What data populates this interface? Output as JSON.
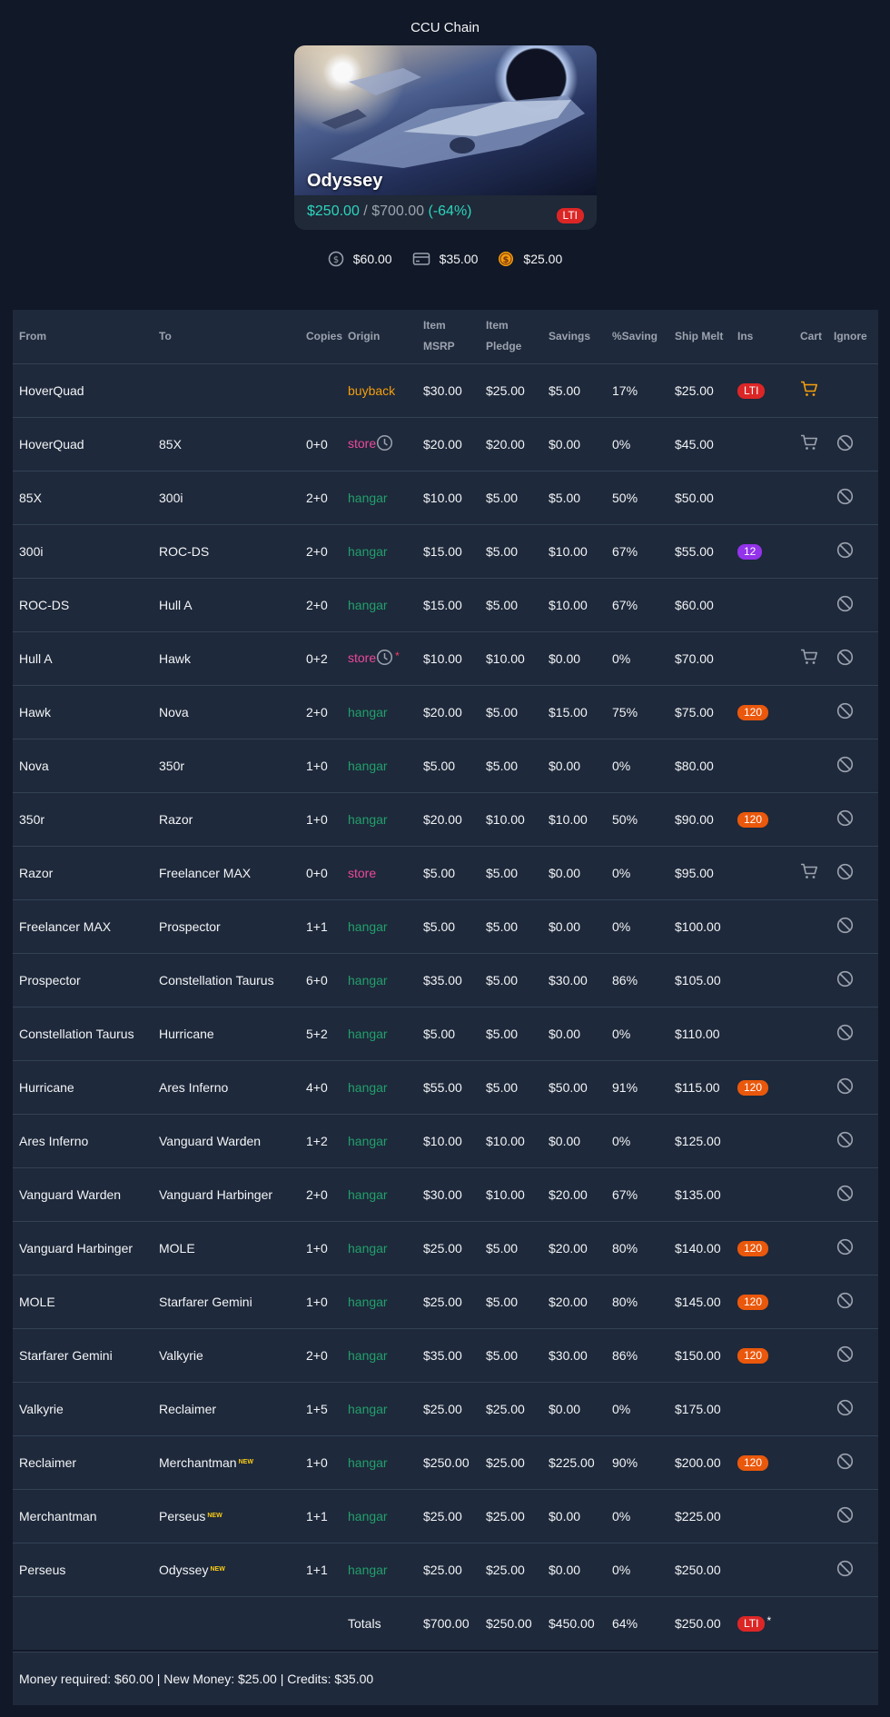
{
  "page_title": "CCU Chain",
  "target": {
    "name": "Odyssey",
    "price": "$250.00",
    "separator": " / ",
    "msrp": "$700.00",
    "discount": "(-64%)",
    "badge": "LTI"
  },
  "funds": [
    {
      "icon": "dollar-circle-icon",
      "value": "$60.00"
    },
    {
      "icon": "credit-card-icon",
      "value": "$35.00"
    },
    {
      "icon": "coin-icon",
      "value": "$25.00"
    }
  ],
  "columns": {
    "from": "From",
    "to": "To",
    "copies": "Copies",
    "origin": "Origin",
    "item_msrp": "Item MSRP",
    "item_pledge_1": "Item",
    "item_pledge_2": "Pledge",
    "savings": "Savings",
    "pct_saving": "%Saving",
    "ship_melt": "Ship Melt",
    "ins": "Ins",
    "cart": "Cart",
    "ignore": "Ignore"
  },
  "rows": [
    {
      "from": "HoverQuad",
      "to": "",
      "new": false,
      "copies": "",
      "origin": "buyback",
      "clock": false,
      "star": false,
      "msrp": "$30.00",
      "pledge": "$25.00",
      "savings": "$5.00",
      "pct": "17%",
      "melt": "$25.00",
      "ins": "LTI",
      "ins_type": "red",
      "cart": "orange",
      "ignore": false
    },
    {
      "from": "HoverQuad",
      "to": "85X",
      "new": false,
      "copies": "0+0",
      "origin": "store",
      "clock": true,
      "star": false,
      "msrp": "$20.00",
      "pledge": "$20.00",
      "savings": "$0.00",
      "pct": "0%",
      "melt": "$45.00",
      "ins": "",
      "ins_type": "",
      "cart": "gray",
      "ignore": true
    },
    {
      "from": "85X",
      "to": "300i",
      "new": false,
      "copies": "2+0",
      "origin": "hangar",
      "clock": false,
      "star": false,
      "msrp": "$10.00",
      "pledge": "$5.00",
      "savings": "$5.00",
      "pct": "50%",
      "melt": "$50.00",
      "ins": "",
      "ins_type": "",
      "cart": "",
      "ignore": true
    },
    {
      "from": "300i",
      "to": "ROC-DS",
      "new": false,
      "copies": "2+0",
      "origin": "hangar",
      "clock": false,
      "star": false,
      "msrp": "$15.00",
      "pledge": "$5.00",
      "savings": "$10.00",
      "pct": "67%",
      "melt": "$55.00",
      "ins": "12",
      "ins_type": "purple",
      "cart": "",
      "ignore": true
    },
    {
      "from": "ROC-DS",
      "to": "Hull A",
      "new": false,
      "copies": "2+0",
      "origin": "hangar",
      "clock": false,
      "star": false,
      "msrp": "$15.00",
      "pledge": "$5.00",
      "savings": "$10.00",
      "pct": "67%",
      "melt": "$60.00",
      "ins": "",
      "ins_type": "",
      "cart": "",
      "ignore": true
    },
    {
      "from": "Hull A",
      "to": "Hawk",
      "new": false,
      "copies": "0+2",
      "origin": "store",
      "clock": true,
      "star": true,
      "msrp": "$10.00",
      "pledge": "$10.00",
      "savings": "$0.00",
      "pct": "0%",
      "melt": "$70.00",
      "ins": "",
      "ins_type": "",
      "cart": "gray",
      "ignore": true
    },
    {
      "from": "Hawk",
      "to": "Nova",
      "new": false,
      "copies": "2+0",
      "origin": "hangar",
      "clock": false,
      "star": false,
      "msrp": "$20.00",
      "pledge": "$5.00",
      "savings": "$15.00",
      "pct": "75%",
      "melt": "$75.00",
      "ins": "120",
      "ins_type": "orange",
      "cart": "",
      "ignore": true
    },
    {
      "from": "Nova",
      "to": "350r",
      "new": false,
      "copies": "1+0",
      "origin": "hangar",
      "clock": false,
      "star": false,
      "msrp": "$5.00",
      "pledge": "$5.00",
      "savings": "$0.00",
      "pct": "0%",
      "melt": "$80.00",
      "ins": "",
      "ins_type": "",
      "cart": "",
      "ignore": true
    },
    {
      "from": "350r",
      "to": "Razor",
      "new": false,
      "copies": "1+0",
      "origin": "hangar",
      "clock": false,
      "star": false,
      "msrp": "$20.00",
      "pledge": "$10.00",
      "savings": "$10.00",
      "pct": "50%",
      "melt": "$90.00",
      "ins": "120",
      "ins_type": "orange",
      "cart": "",
      "ignore": true
    },
    {
      "from": "Razor",
      "to": "Freelancer MAX",
      "new": false,
      "copies": "0+0",
      "origin": "store",
      "clock": false,
      "star": false,
      "msrp": "$5.00",
      "pledge": "$5.00",
      "savings": "$0.00",
      "pct": "0%",
      "melt": "$95.00",
      "ins": "",
      "ins_type": "",
      "cart": "gray",
      "ignore": true
    },
    {
      "from": "Freelancer MAX",
      "to": "Prospector",
      "new": false,
      "copies": "1+1",
      "origin": "hangar",
      "clock": false,
      "star": false,
      "msrp": "$5.00",
      "pledge": "$5.00",
      "savings": "$0.00",
      "pct": "0%",
      "melt": "$100.00",
      "ins": "",
      "ins_type": "",
      "cart": "",
      "ignore": true
    },
    {
      "from": "Prospector",
      "to": "Constellation Taurus",
      "new": false,
      "copies": "6+0",
      "origin": "hangar",
      "clock": false,
      "star": false,
      "msrp": "$35.00",
      "pledge": "$5.00",
      "savings": "$30.00",
      "pct": "86%",
      "melt": "$105.00",
      "ins": "",
      "ins_type": "",
      "cart": "",
      "ignore": true
    },
    {
      "from": "Constellation Taurus",
      "to": "Hurricane",
      "new": false,
      "copies": "5+2",
      "origin": "hangar",
      "clock": false,
      "star": false,
      "msrp": "$5.00",
      "pledge": "$5.00",
      "savings": "$0.00",
      "pct": "0%",
      "melt": "$110.00",
      "ins": "",
      "ins_type": "",
      "cart": "",
      "ignore": true
    },
    {
      "from": "Hurricane",
      "to": "Ares Inferno",
      "new": false,
      "copies": "4+0",
      "origin": "hangar",
      "clock": false,
      "star": false,
      "msrp": "$55.00",
      "pledge": "$5.00",
      "savings": "$50.00",
      "pct": "91%",
      "melt": "$115.00",
      "ins": "120",
      "ins_type": "orange",
      "cart": "",
      "ignore": true
    },
    {
      "from": "Ares Inferno",
      "to": "Vanguard Warden",
      "new": false,
      "copies": "1+2",
      "origin": "hangar",
      "clock": false,
      "star": false,
      "msrp": "$10.00",
      "pledge": "$10.00",
      "savings": "$0.00",
      "pct": "0%",
      "melt": "$125.00",
      "ins": "",
      "ins_type": "",
      "cart": "",
      "ignore": true
    },
    {
      "from": "Vanguard Warden",
      "to": "Vanguard Harbinger",
      "new": false,
      "copies": "2+0",
      "origin": "hangar",
      "clock": false,
      "star": false,
      "msrp": "$30.00",
      "pledge": "$10.00",
      "savings": "$20.00",
      "pct": "67%",
      "melt": "$135.00",
      "ins": "",
      "ins_type": "",
      "cart": "",
      "ignore": true
    },
    {
      "from": "Vanguard Harbinger",
      "to": "MOLE",
      "new": false,
      "copies": "1+0",
      "origin": "hangar",
      "clock": false,
      "star": false,
      "msrp": "$25.00",
      "pledge": "$5.00",
      "savings": "$20.00",
      "pct": "80%",
      "melt": "$140.00",
      "ins": "120",
      "ins_type": "orange",
      "cart": "",
      "ignore": true
    },
    {
      "from": "MOLE",
      "to": "Starfarer Gemini",
      "new": false,
      "copies": "1+0",
      "origin": "hangar",
      "clock": false,
      "star": false,
      "msrp": "$25.00",
      "pledge": "$5.00",
      "savings": "$20.00",
      "pct": "80%",
      "melt": "$145.00",
      "ins": "120",
      "ins_type": "orange",
      "cart": "",
      "ignore": true
    },
    {
      "from": "Starfarer Gemini",
      "to": "Valkyrie",
      "new": false,
      "copies": "2+0",
      "origin": "hangar",
      "clock": false,
      "star": false,
      "msrp": "$35.00",
      "pledge": "$5.00",
      "savings": "$30.00",
      "pct": "86%",
      "melt": "$150.00",
      "ins": "120",
      "ins_type": "orange",
      "cart": "",
      "ignore": true
    },
    {
      "from": "Valkyrie",
      "to": "Reclaimer",
      "new": false,
      "copies": "1+5",
      "origin": "hangar",
      "clock": false,
      "star": false,
      "msrp": "$25.00",
      "pledge": "$25.00",
      "savings": "$0.00",
      "pct": "0%",
      "melt": "$175.00",
      "ins": "",
      "ins_type": "",
      "cart": "",
      "ignore": true
    },
    {
      "from": "Reclaimer",
      "to": "Merchantman",
      "new": true,
      "copies": "1+0",
      "origin": "hangar",
      "clock": false,
      "star": false,
      "msrp": "$250.00",
      "pledge": "$25.00",
      "savings": "$225.00",
      "pct": "90%",
      "melt": "$200.00",
      "ins": "120",
      "ins_type": "orange",
      "cart": "",
      "ignore": true
    },
    {
      "from": "Merchantman",
      "to": "Perseus",
      "new": true,
      "copies": "1+1",
      "origin": "hangar",
      "clock": false,
      "star": false,
      "msrp": "$25.00",
      "pledge": "$25.00",
      "savings": "$0.00",
      "pct": "0%",
      "melt": "$225.00",
      "ins": "",
      "ins_type": "",
      "cart": "",
      "ignore": true
    },
    {
      "from": "Perseus",
      "to": "Odyssey",
      "new": true,
      "copies": "1+1",
      "origin": "hangar",
      "clock": false,
      "star": false,
      "msrp": "$25.00",
      "pledge": "$25.00",
      "savings": "$0.00",
      "pct": "0%",
      "melt": "$250.00",
      "ins": "",
      "ins_type": "",
      "cart": "",
      "ignore": true
    }
  ],
  "new_tag": "NEW",
  "star_mark": "*",
  "totals": {
    "label": "Totals",
    "msrp": "$700.00",
    "pledge": "$250.00",
    "savings": "$450.00",
    "pct": "64%",
    "melt": "$250.00",
    "ins": "LTI",
    "star": "*"
  },
  "footer_text": "Money required: $60.00 | New Money: $25.00 | Credits: $35.00",
  "colors": {
    "background": "#111827",
    "table": "#1e293b",
    "hangar": "#22a06b",
    "store": "#ec4899",
    "buyback": "#f59e0b",
    "savings": "#2dd4bf"
  }
}
